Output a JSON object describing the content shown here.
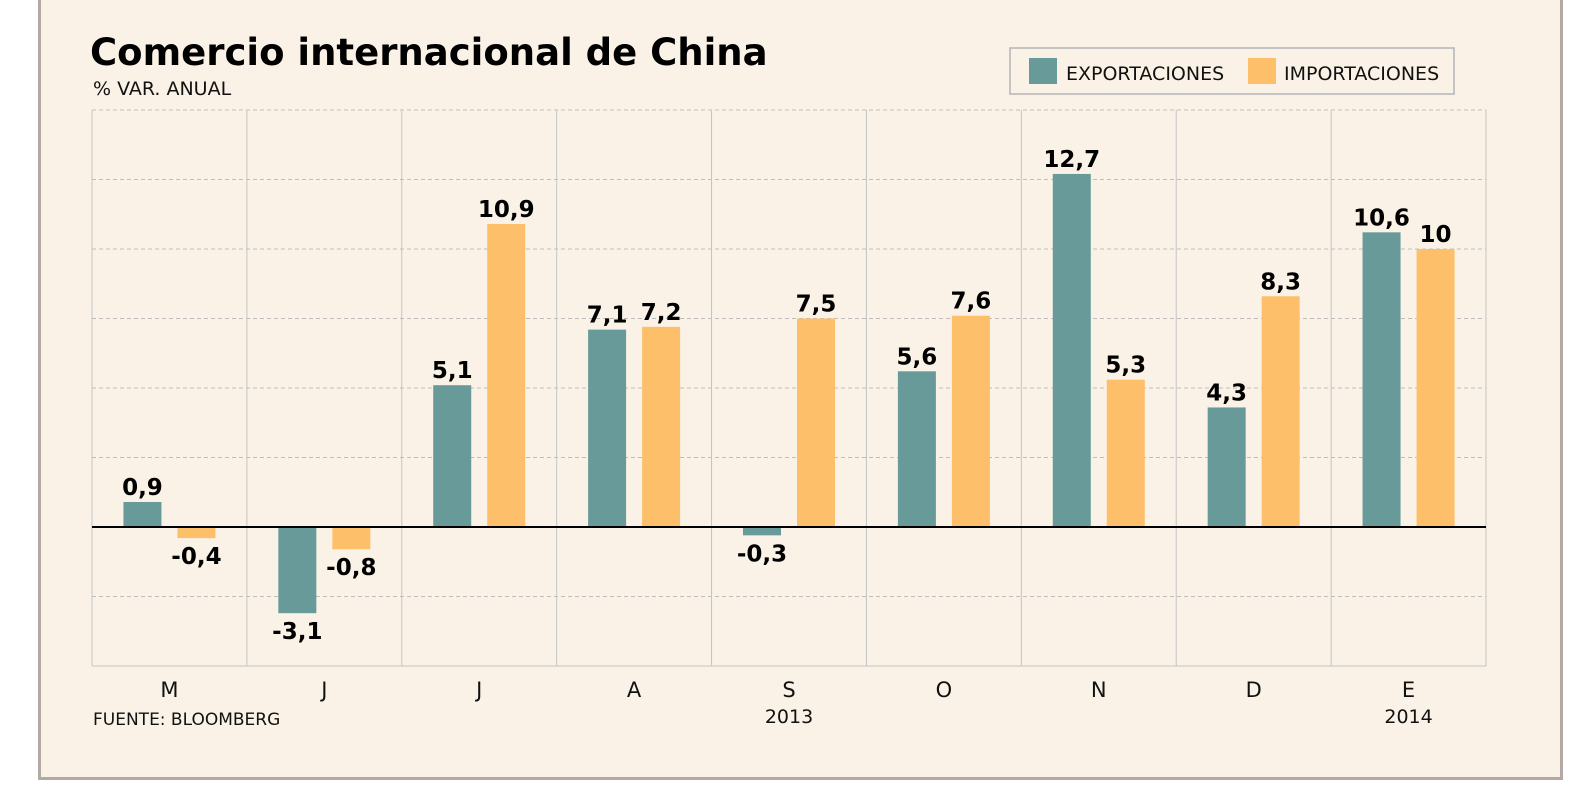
{
  "chart_data": {
    "type": "bar",
    "title": "Comercio internacional de China",
    "subtitle": "% VAR. ANUAL",
    "source": "FUENTE: BLOOMBERG",
    "categories": [
      "M",
      "J",
      "J",
      "A",
      "S",
      "O",
      "N",
      "D",
      "E"
    ],
    "year_labels": [
      {
        "category_index": 4,
        "text": "2013"
      },
      {
        "category_index": 8,
        "text": "2014"
      }
    ],
    "series": [
      {
        "name": "EXPORTACIONES",
        "color": "#679a98",
        "values": [
          0.9,
          -3.1,
          5.1,
          7.1,
          -0.3,
          5.6,
          12.7,
          4.3,
          10.6
        ],
        "labels": [
          "0,9",
          "-3,1",
          "5,1",
          "7,1",
          "-0,3",
          "5,6",
          "12,7",
          "4,3",
          "10,6"
        ]
      },
      {
        "name": "IMPORTACIONES",
        "color": "#fdbf6a",
        "values": [
          -0.4,
          -0.8,
          10.9,
          7.2,
          7.5,
          7.6,
          5.3,
          8.3,
          10
        ],
        "labels": [
          "-0,4",
          "-0,8",
          "10,9",
          "7,2",
          "7,5",
          "7,6",
          "5,3",
          "8,3",
          "10"
        ]
      }
    ],
    "ylim": [
      -5,
      15
    ],
    "grid": true,
    "legend_position": "top-right"
  }
}
